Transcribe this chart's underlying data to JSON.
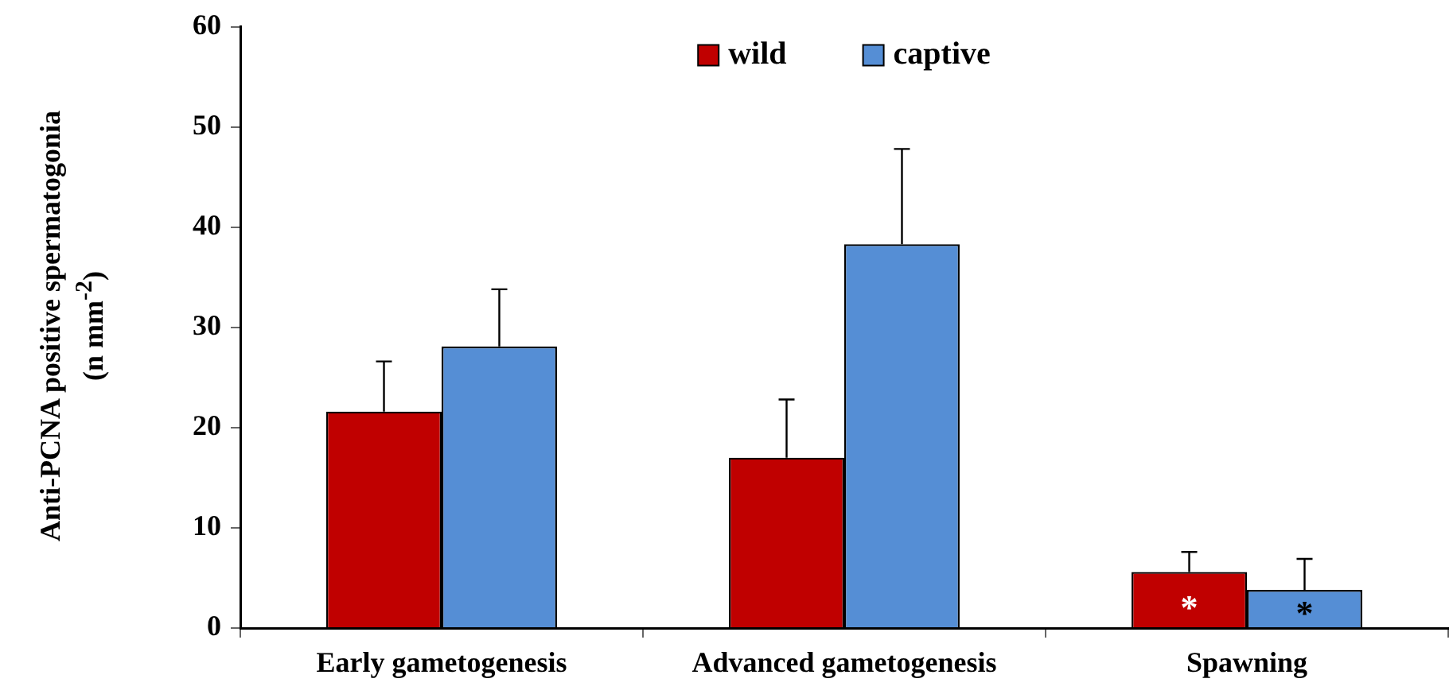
{
  "chart_data": {
    "type": "bar",
    "ylabel": "Anti-PCNA positive spermatogonia\n(n mm$^{-2}$)",
    "categories": [
      "Early gametogenesis",
      "Advanced gametogenesis",
      "Spawning"
    ],
    "series": [
      {
        "name": "wild",
        "color": "#c00000",
        "values": [
          21.6,
          17.0,
          5.6
        ],
        "errors": [
          [
            21.6,
            26.6
          ],
          [
            17.0,
            22.8
          ],
          [
            5.6,
            7.6
          ]
        ]
      },
      {
        "name": "captive",
        "color": "#558ed5",
        "values": [
          28.1,
          38.3,
          3.8
        ],
        "errors": [
          [
            28.1,
            33.8
          ],
          [
            38.3,
            47.8
          ],
          [
            3.8,
            6.9
          ]
        ]
      }
    ],
    "ylim": [
      0,
      60
    ],
    "yticks": [
      0,
      10,
      20,
      30,
      40,
      50,
      60
    ],
    "grid": false,
    "legend": "top",
    "annotations": [
      {
        "text": "*",
        "x": "Spawning",
        "y": 1.8
      },
      {
        "text": "*",
        "x": "Spawning",
        "y": 1.2
      }
    ]
  }
}
